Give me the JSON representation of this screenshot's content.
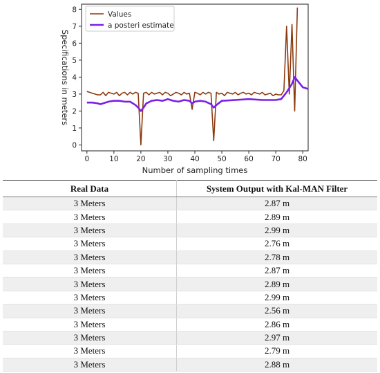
{
  "chart_data": {
    "type": "line",
    "title": "",
    "xlabel": "Number of sampling times",
    "ylabel": "Specifications in meters",
    "xlim": [
      -2,
      82
    ],
    "ylim": [
      -0.35,
      8.3
    ],
    "xticks": [
      0,
      10,
      20,
      30,
      40,
      50,
      60,
      70,
      80
    ],
    "yticks": [
      0,
      1,
      2,
      3,
      4,
      5,
      6,
      7,
      8
    ],
    "grid": false,
    "legend_position": "top-left",
    "series": [
      {
        "name": "Values",
        "color": "#8b3a0e",
        "x": [
          0,
          1,
          2,
          3,
          4,
          5,
          6,
          7,
          8,
          9,
          10,
          11,
          12,
          13,
          14,
          15,
          16,
          17,
          18,
          19,
          20,
          21,
          22,
          23,
          24,
          25,
          26,
          27,
          28,
          29,
          30,
          31,
          32,
          33,
          34,
          35,
          36,
          37,
          38,
          39,
          40,
          41,
          42,
          43,
          44,
          45,
          46,
          47,
          48,
          49,
          50,
          51,
          52,
          53,
          54,
          55,
          56,
          57,
          58,
          59,
          60,
          61,
          62,
          63,
          64,
          65,
          66,
          67,
          68,
          69,
          70,
          71,
          72,
          73,
          74,
          75,
          76,
          77,
          78
        ],
        "y": [
          3.15,
          3.1,
          3.05,
          3.0,
          2.95,
          2.95,
          3.1,
          2.9,
          3.1,
          3.05,
          3.0,
          3.1,
          2.9,
          3.05,
          3.1,
          2.95,
          3.1,
          3.0,
          3.1,
          3.05,
          0.0,
          3.05,
          3.1,
          2.95,
          3.1,
          3.0,
          3.05,
          3.1,
          2.95,
          3.1,
          3.05,
          2.9,
          3.0,
          3.1,
          3.05,
          2.95,
          3.1,
          3.0,
          3.05,
          2.1,
          3.1,
          3.05,
          2.95,
          3.1,
          3.0,
          3.1,
          3.05,
          0.25,
          3.1,
          3.0,
          3.05,
          2.9,
          3.1,
          3.05,
          3.0,
          3.1,
          2.95,
          3.05,
          3.1,
          3.0,
          3.05,
          2.95,
          3.1,
          3.05,
          3.0,
          3.1,
          2.95,
          3.0,
          3.05,
          2.9,
          3.0,
          2.95,
          2.95,
          3.2,
          7.0,
          3.0,
          7.1,
          2.0,
          8.1
        ]
      },
      {
        "name": "a posteri estimate",
        "color": "#7a1fe6",
        "x": [
          0,
          2,
          4,
          5,
          6,
          8,
          10,
          12,
          14,
          16,
          18,
          19,
          20,
          21,
          22,
          24,
          26,
          28,
          30,
          32,
          34,
          36,
          38,
          39,
          40,
          42,
          44,
          46,
          47,
          48,
          50,
          55,
          60,
          65,
          70,
          72,
          73,
          74,
          75,
          76,
          77,
          78,
          80,
          82
        ],
        "y": [
          2.5,
          2.5,
          2.45,
          2.4,
          2.45,
          2.55,
          2.6,
          2.6,
          2.55,
          2.55,
          2.35,
          2.2,
          2.0,
          2.2,
          2.45,
          2.6,
          2.65,
          2.6,
          2.7,
          2.6,
          2.55,
          2.65,
          2.6,
          2.45,
          2.55,
          2.6,
          2.55,
          2.4,
          2.2,
          2.35,
          2.6,
          2.65,
          2.7,
          2.65,
          2.65,
          2.7,
          2.9,
          3.1,
          3.35,
          3.6,
          4.0,
          3.8,
          3.4,
          3.3
        ]
      }
    ]
  },
  "table": {
    "headers": [
      "Real Data",
      "System Output with Kal-MAN Filter"
    ],
    "rows": [
      [
        "3 Meters",
        "2.87 m"
      ],
      [
        "3 Meters",
        "2.89 m"
      ],
      [
        "3 Meters",
        "2.99 m"
      ],
      [
        "3 Meters",
        "2.76 m"
      ],
      [
        "3 Meters",
        "2.78 m"
      ],
      [
        "3 Meters",
        "2.87 m"
      ],
      [
        "3 Meters",
        "2.89 m"
      ],
      [
        "3 Meters",
        "2.99 m"
      ],
      [
        "3 Meters",
        "2.56 m"
      ],
      [
        "3 Meters",
        "2.86 m"
      ],
      [
        "3 Meters",
        "2.97 m"
      ],
      [
        "3 Meters",
        "2.79 m"
      ],
      [
        "3 Meters",
        "2.88 m"
      ]
    ]
  }
}
